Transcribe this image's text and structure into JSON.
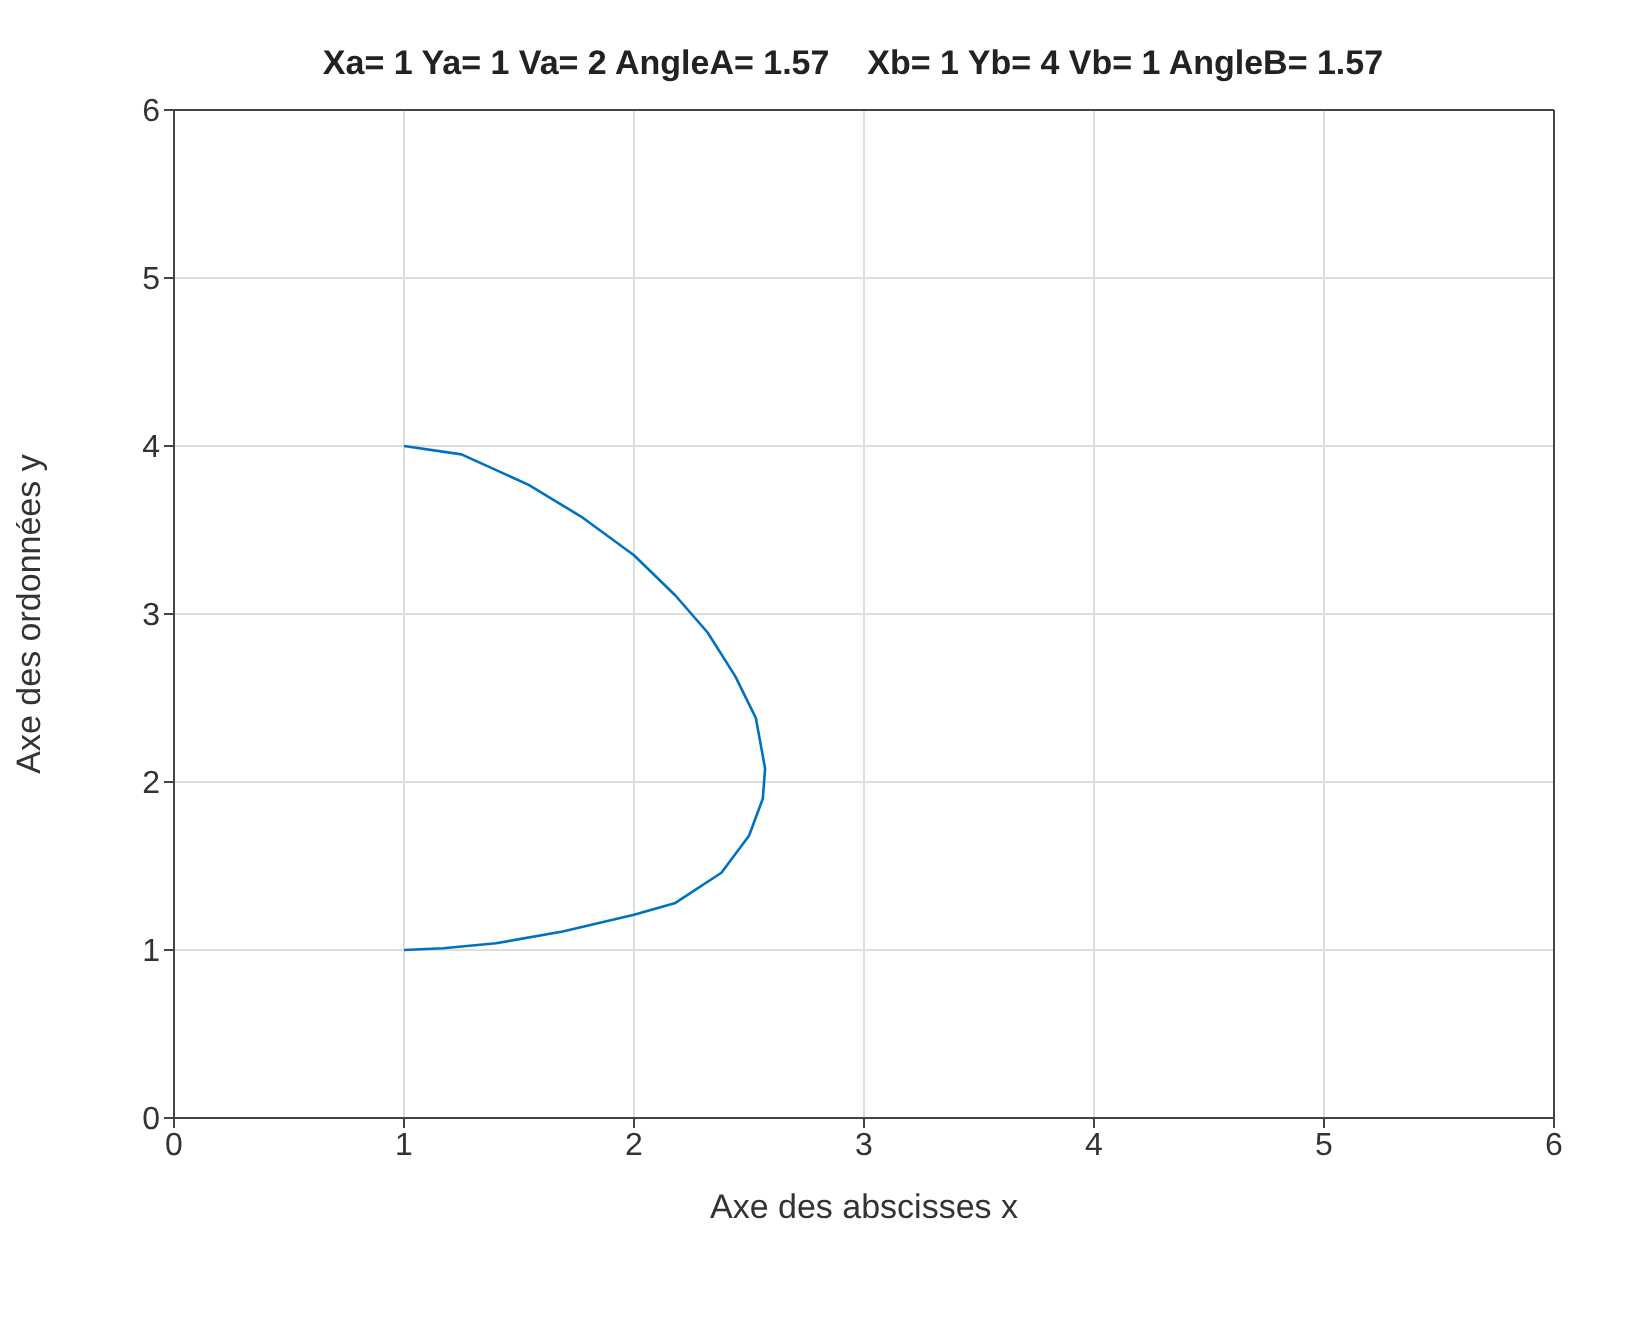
{
  "chart_data": {
    "type": "line",
    "title": "Xa= 1 Ya= 1 Va= 2 AngleA= 1.57    Xb= 1 Yb= 4 Vb= 1 AngleB= 1.57",
    "xlabel": "Axe des abscisses x",
    "ylabel": "Axe des ordonnées y",
    "series": [
      {
        "color": "#0072bd",
        "x": [
          1,
          1.25,
          1.54,
          1.77,
          2.0,
          2.18,
          2.32,
          2.44,
          2.53,
          2.57,
          2.56,
          2.5,
          2.38,
          2.18,
          2.0,
          1.69,
          1.4,
          1.17,
          1
        ],
        "values": [
          4,
          3.95,
          3.77,
          3.58,
          3.35,
          3.11,
          2.89,
          2.63,
          2.38,
          2.08,
          1.9,
          1.68,
          1.46,
          1.28,
          1.21,
          1.11,
          1.04,
          1.01,
          1
        ]
      }
    ],
    "xlim": [
      0,
      6
    ],
    "ylim": [
      0,
      6
    ],
    "xticks": [
      0,
      1,
      2,
      3,
      4,
      5,
      6
    ],
    "yticks": [
      0,
      1,
      2,
      3,
      4,
      5,
      6
    ],
    "grid": true,
    "marker": "none",
    "line_style": "solid",
    "legend": false
  }
}
